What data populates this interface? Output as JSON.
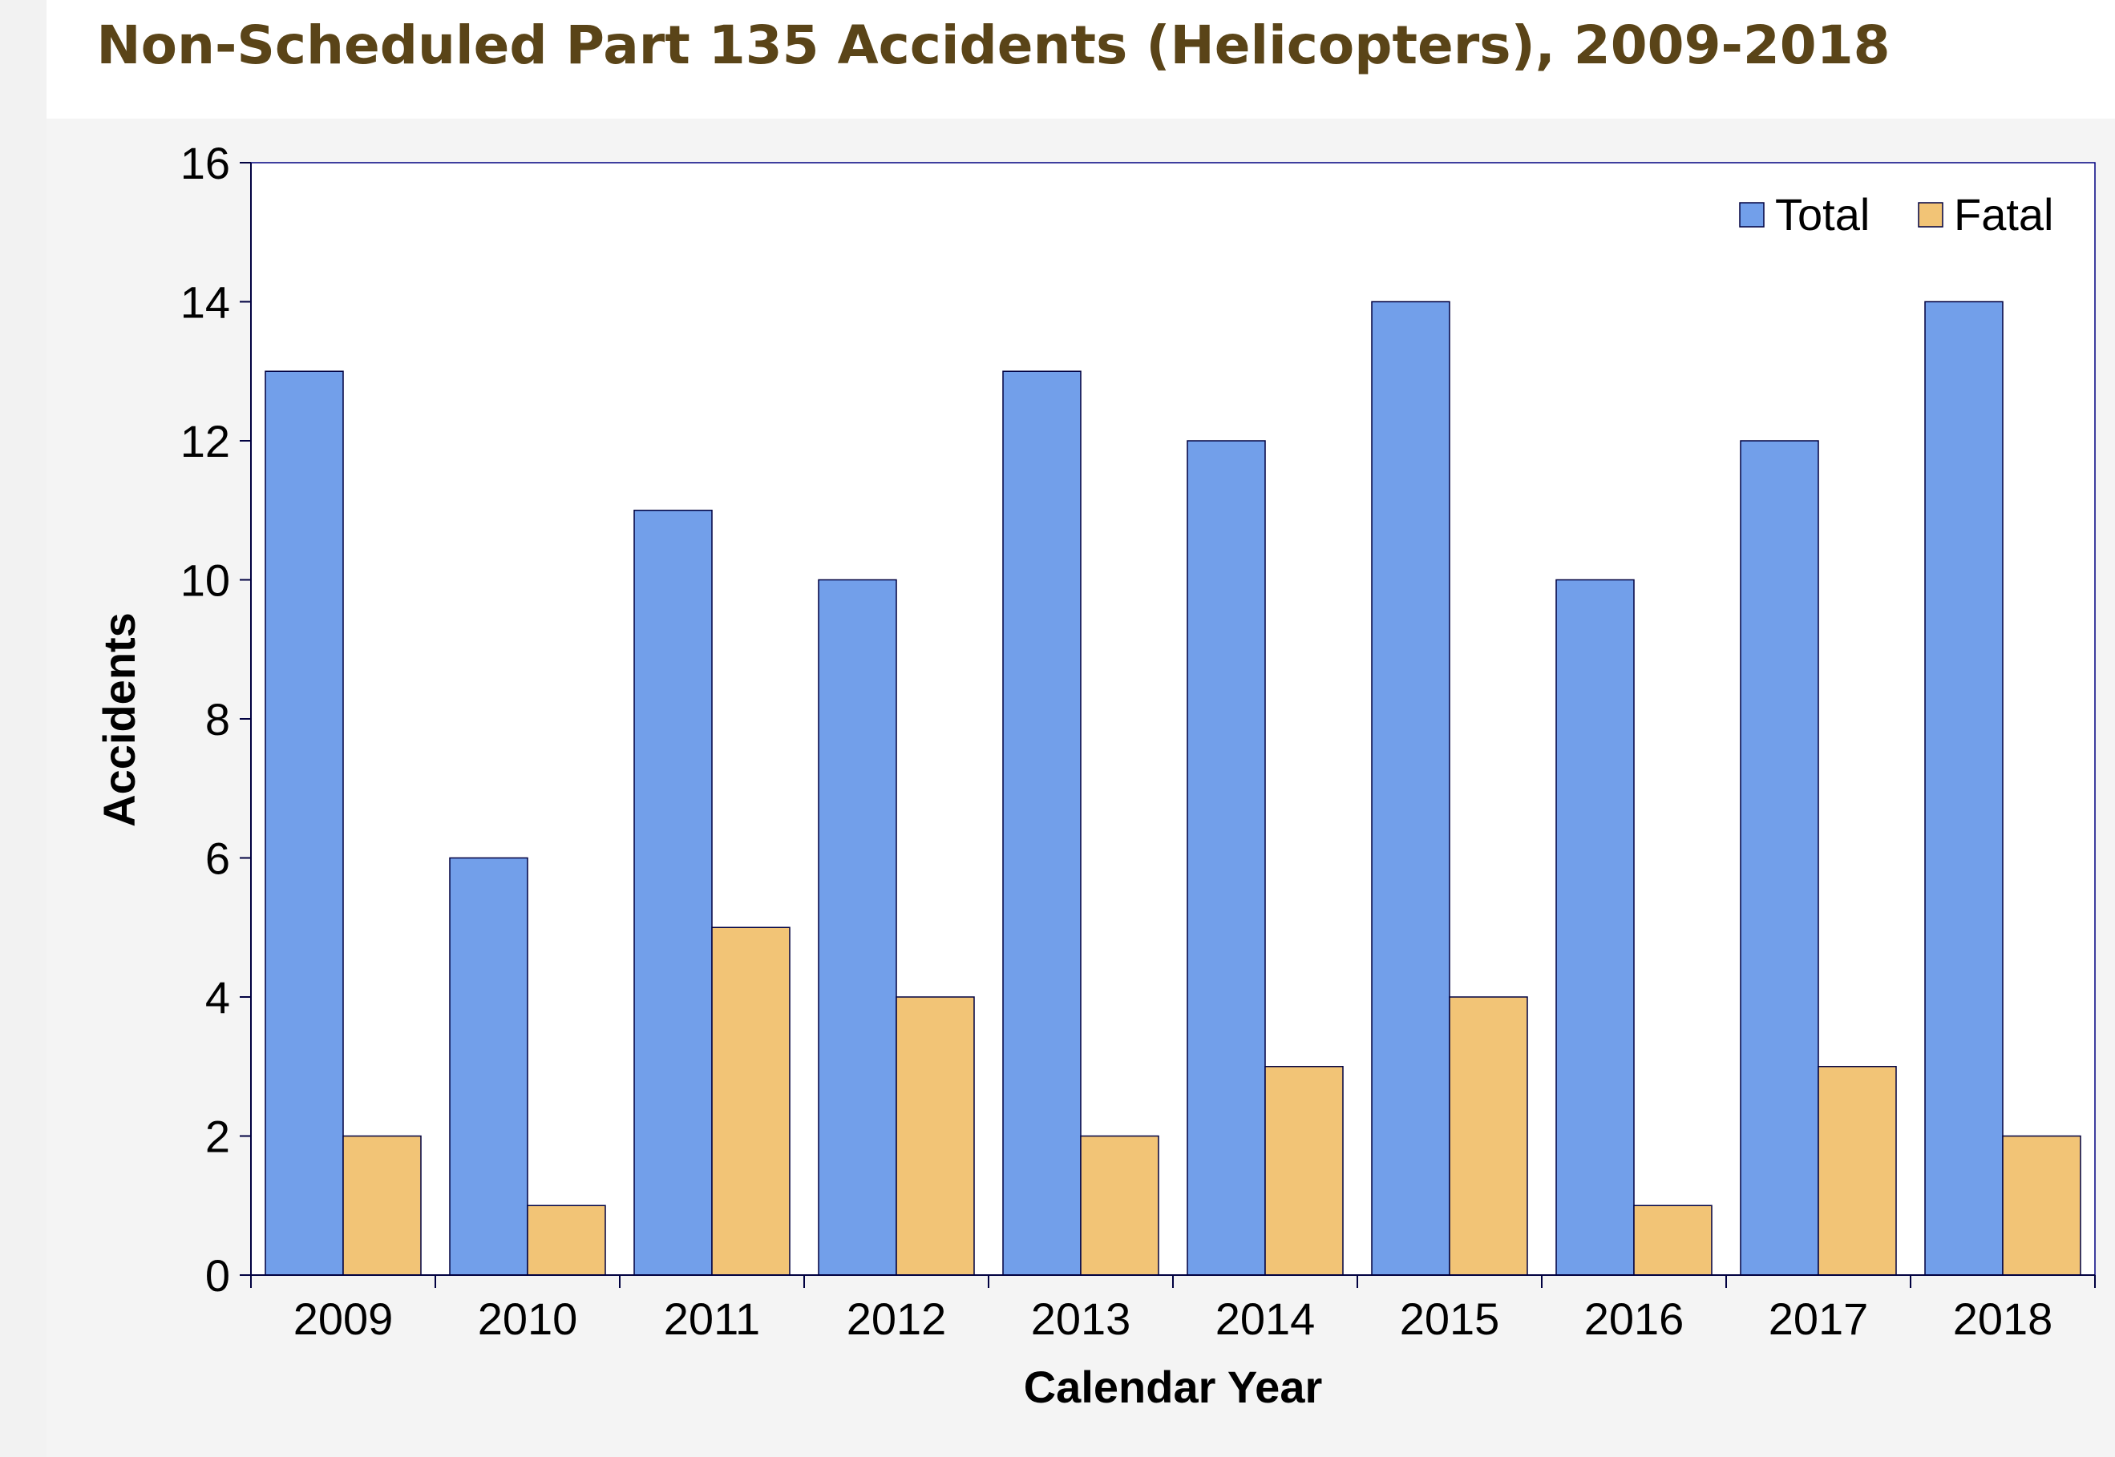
{
  "chart_data": {
    "type": "bar",
    "title": "Non-Scheduled Part 135 Accidents (Helicopters), 2009-2018",
    "xlabel": "Calendar Year",
    "ylabel": "Accidents",
    "categories": [
      "2009",
      "2010",
      "2011",
      "2012",
      "2013",
      "2014",
      "2015",
      "2016",
      "2017",
      "2018"
    ],
    "series": [
      {
        "name": "Total",
        "color": "#729fea",
        "values": [
          13,
          6,
          11,
          10,
          13,
          12,
          14,
          10,
          12,
          14
        ]
      },
      {
        "name": "Fatal",
        "color": "#f2c476",
        "values": [
          2,
          1,
          5,
          4,
          2,
          3,
          4,
          1,
          3,
          2
        ]
      }
    ],
    "ylim": [
      0,
      16
    ],
    "yticks": [
      "0",
      "2",
      "4",
      "6",
      "8",
      "10",
      "12",
      "14",
      "16"
    ],
    "grid": false,
    "legend_position": "top-right"
  }
}
